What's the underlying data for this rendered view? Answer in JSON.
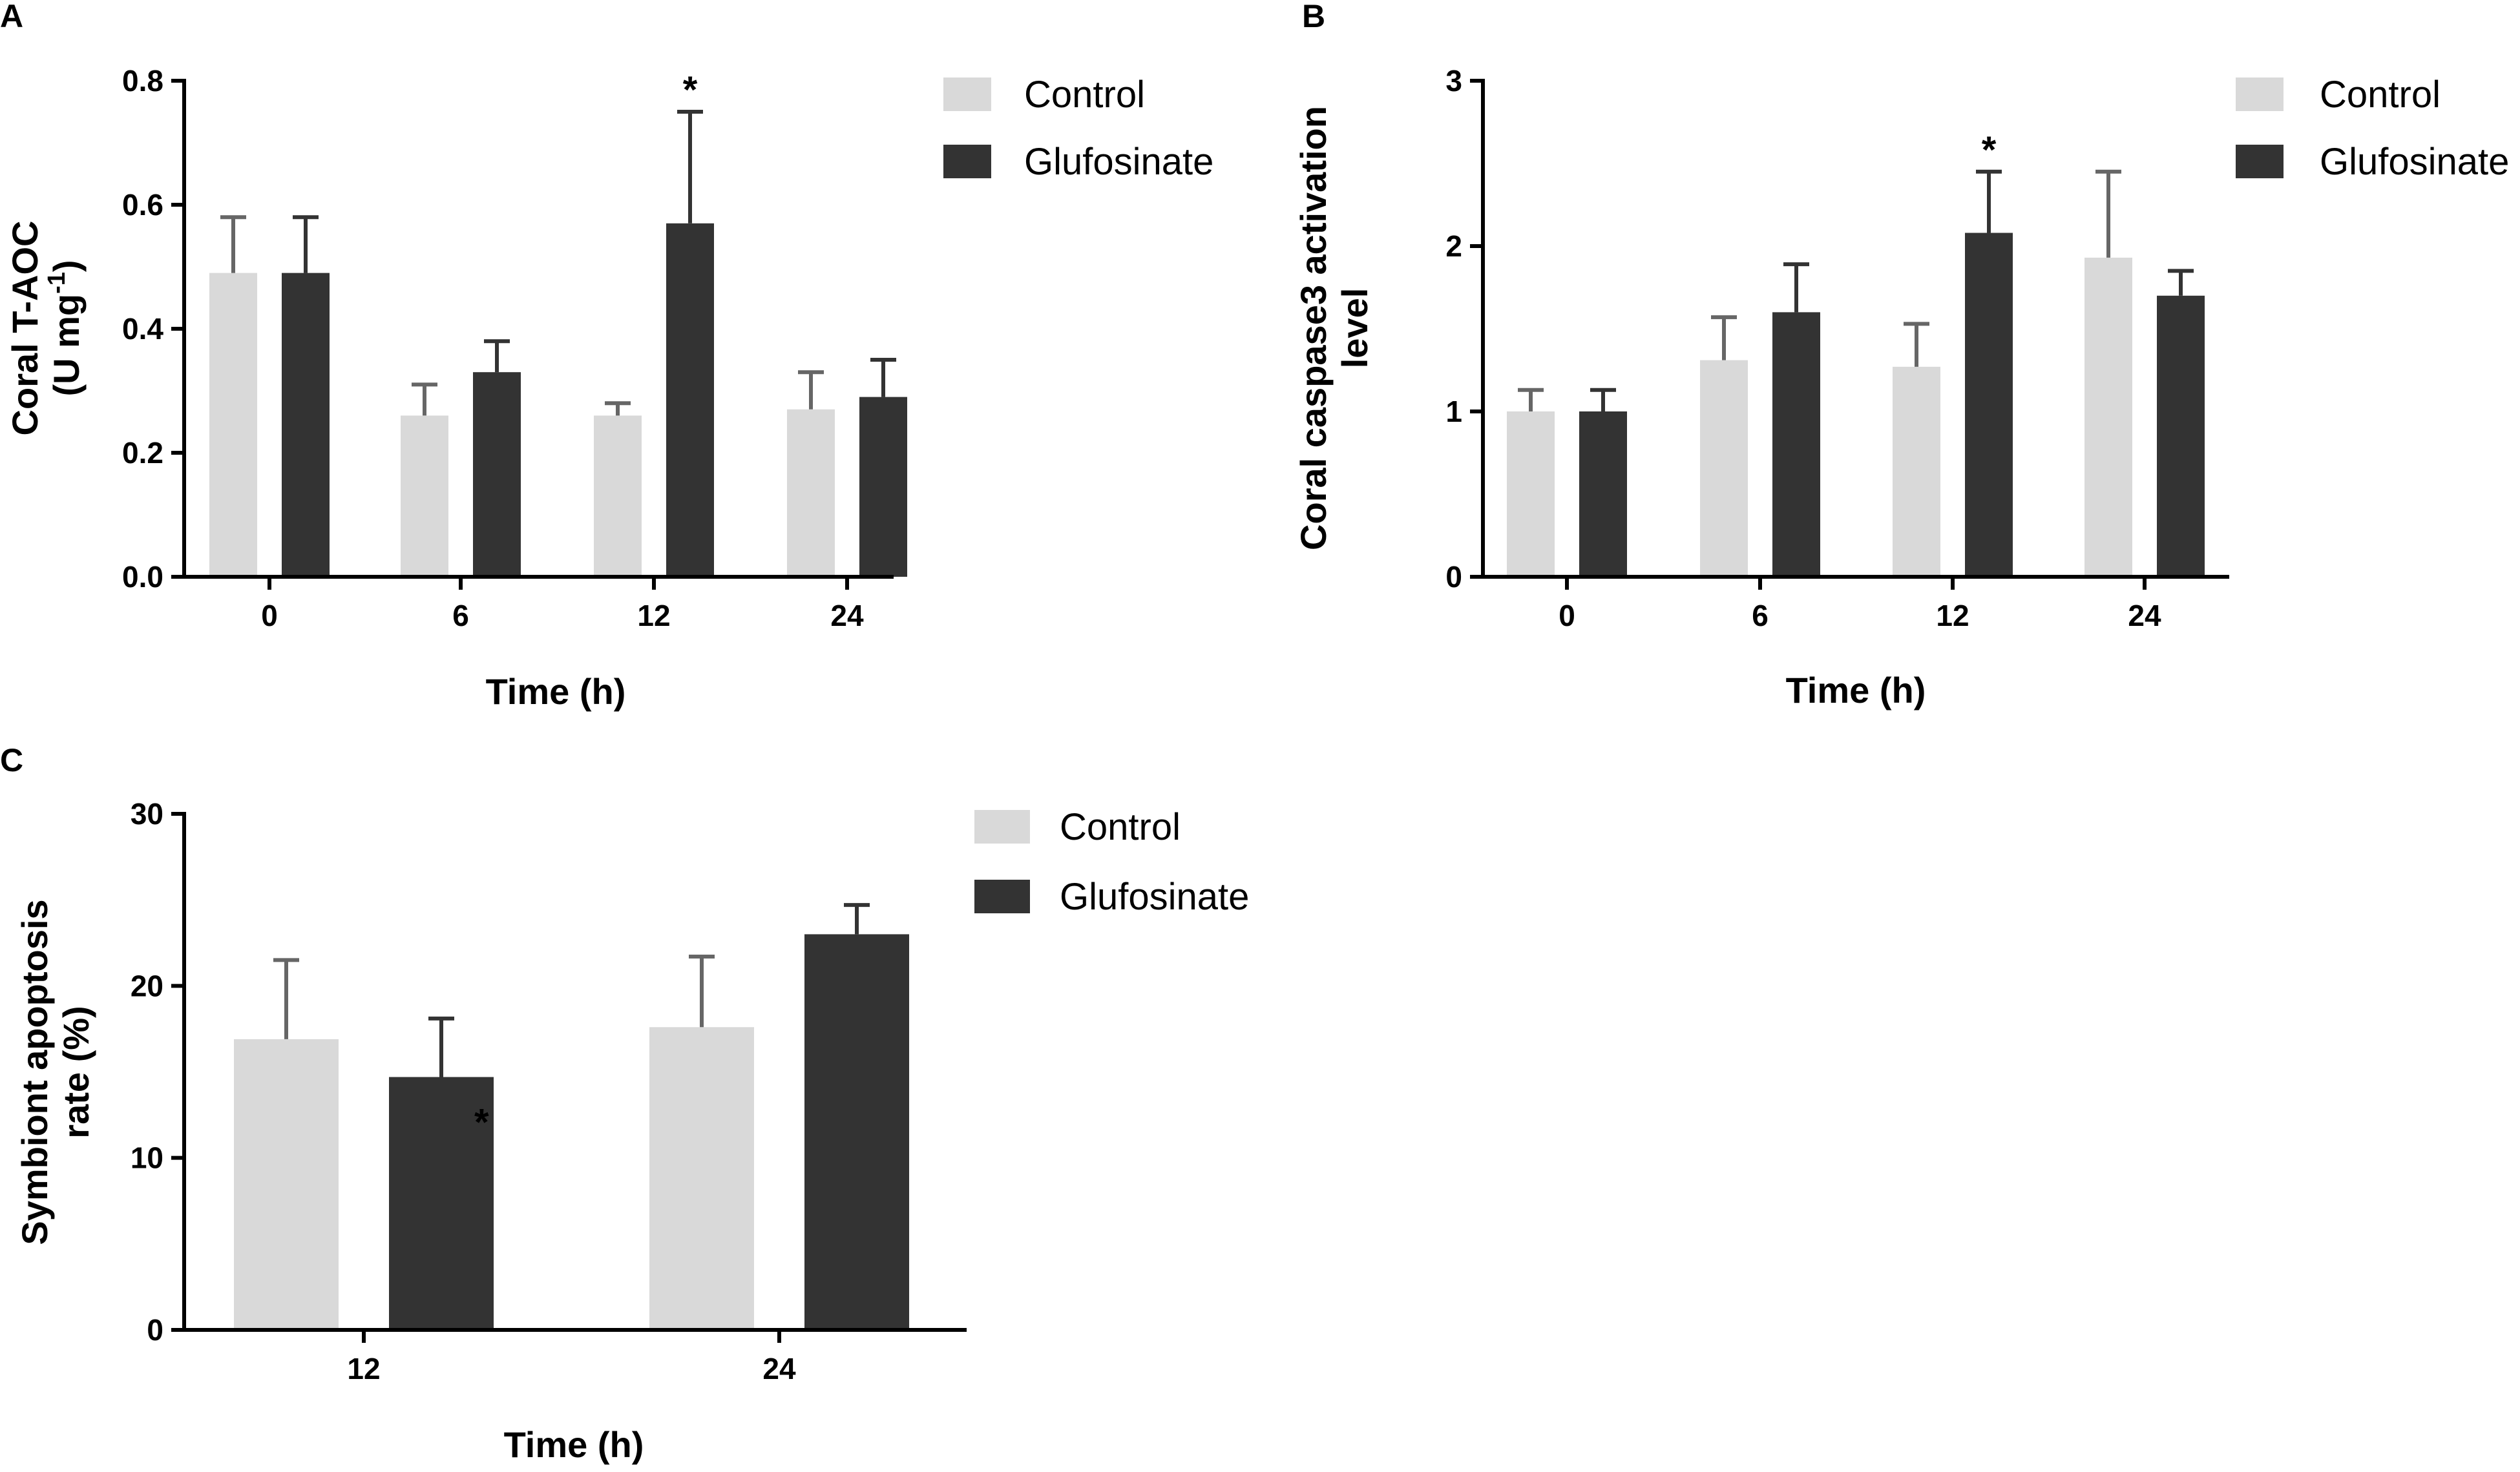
{
  "colors": {
    "control": "#d9d9d9",
    "glufosinate": "#333333",
    "axis": "#000000",
    "error_control": "#666666",
    "error_glufosinate": "#333333"
  },
  "chart_data": [
    {
      "id": "A",
      "type": "bar",
      "panel_label": "A",
      "xlabel": "Time (h)",
      "ylabel_line1": "Coral T-AOC",
      "ylabel_line2": "(U mg",
      "ylabel_sup": "-1",
      "ylabel_close": ")",
      "ylim": [
        0,
        0.8
      ],
      "yticks": [
        0.0,
        0.2,
        0.4,
        0.6,
        0.8
      ],
      "ytick_labels": [
        "0.0",
        "0.2",
        "0.4",
        "0.6",
        "0.8"
      ],
      "categories": [
        "0",
        "6",
        "12",
        "24"
      ],
      "legend": [
        "Control",
        "Glufosinate"
      ],
      "series": [
        {
          "name": "Control",
          "values": [
            0.49,
            0.26,
            0.26,
            0.27
          ],
          "errors": [
            0.09,
            0.05,
            0.02,
            0.06
          ]
        },
        {
          "name": "Glufosinate",
          "values": [
            0.49,
            0.33,
            0.57,
            0.29
          ],
          "errors": [
            0.09,
            0.05,
            0.18,
            0.06
          ]
        }
      ],
      "annotations": [
        {
          "series": 1,
          "category": 2,
          "text": "*",
          "position": "above"
        }
      ]
    },
    {
      "id": "B",
      "type": "bar",
      "panel_label": "B",
      "xlabel": "Time (h)",
      "ylabel_line1": "Coral caspase3 activation",
      "ylabel_line2": "level",
      "ylim": [
        0,
        3
      ],
      "yticks": [
        0,
        1,
        2,
        3
      ],
      "ytick_labels": [
        "0",
        "1",
        "2",
        "3"
      ],
      "categories": [
        "0",
        "6",
        "12",
        "24"
      ],
      "legend": [
        "Control",
        "Glufosinate"
      ],
      "series": [
        {
          "name": "Control",
          "values": [
            1.0,
            1.31,
            1.27,
            1.93
          ],
          "errors": [
            0.13,
            0.26,
            0.26,
            0.52
          ]
        },
        {
          "name": "Glufosinate",
          "values": [
            1.0,
            1.6,
            2.08,
            1.7
          ],
          "errors": [
            0.13,
            0.29,
            0.37,
            0.15
          ]
        }
      ],
      "annotations": [
        {
          "series": 1,
          "category": 2,
          "text": "*",
          "position": "above"
        }
      ]
    },
    {
      "id": "C",
      "type": "bar",
      "panel_label": "C",
      "xlabel": "Time (h)",
      "ylabel_line1": "Symbiont apoptosis",
      "ylabel_line2": "rate (%)",
      "ylim": [
        0,
        30
      ],
      "yticks": [
        0,
        10,
        20,
        30
      ],
      "ytick_labels": [
        "0",
        "10",
        "20",
        "30"
      ],
      "categories": [
        "12",
        "24"
      ],
      "legend": [
        "Control",
        "Glufosinate"
      ],
      "series": [
        {
          "name": "Control",
          "values": [
            16.9,
            17.6
          ],
          "errors": [
            4.6,
            4.1
          ]
        },
        {
          "name": "Glufosinate",
          "values": [
            14.7,
            23.0
          ],
          "errors": [
            3.4,
            1.7
          ]
        }
      ],
      "annotations": [
        {
          "series": 1,
          "category": 0,
          "text": "*",
          "position": "inside-right"
        }
      ]
    }
  ]
}
